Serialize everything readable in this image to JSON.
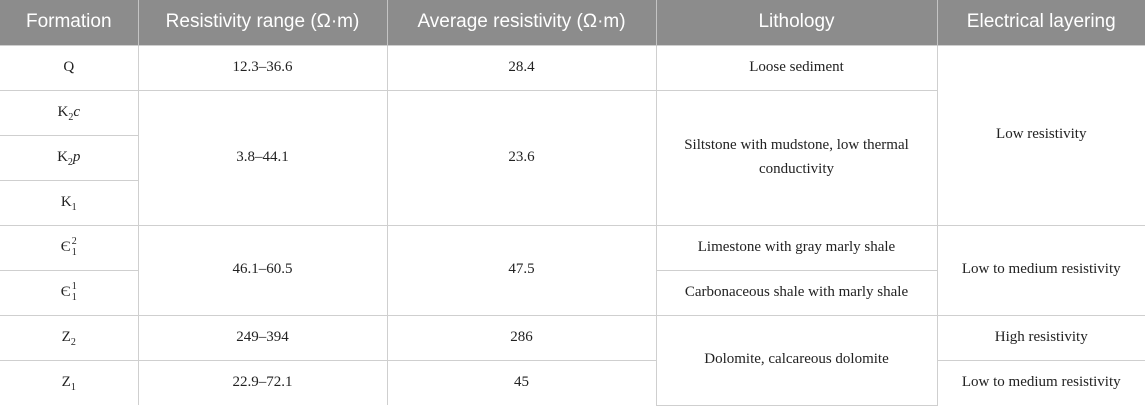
{
  "header": {
    "formation": "Formation",
    "resistivity_range": "Resistivity range (Ω·m)",
    "average_resistivity": "Average resistivity (Ω·m)",
    "lithology": "Lithology",
    "electrical_layering": "Electrical layering"
  },
  "rows": [
    {
      "formation_base": "Q",
      "range": "12.3–36.6",
      "average": "28.4",
      "lithology": "Loose sediment"
    },
    {
      "formation_base": "K",
      "formation_sub": "2",
      "formation_suffix": "c"
    },
    {
      "formation_base": "K",
      "formation_sub": "2",
      "formation_suffix": "p",
      "range": "3.8–44.1",
      "average": "23.6",
      "lithology": "Siltstone with mudstone, low thermal conductivity"
    },
    {
      "formation_base": "K",
      "formation_sub": "1"
    },
    {
      "formation_base": "Є",
      "formation_sub": "1",
      "formation_sup": "2",
      "lithology": "Limestone with gray marly shale"
    },
    {
      "formation_base": "Є",
      "formation_sub": "1",
      "formation_sup": "1",
      "lithology": "Carbonaceous shale with marly shale"
    },
    {
      "formation_base": "Z",
      "formation_sub": "2",
      "range": "249–394",
      "average": "286",
      "lithology": "Dolomite, calcareous dolomite"
    },
    {
      "formation_base": "Z",
      "formation_sub": "1",
      "range": "22.9–72.1",
      "average": "45"
    }
  ],
  "group_values": {
    "cambrian_range": "46.1–60.5",
    "cambrian_average": "47.5"
  },
  "layering": {
    "low": "Low resistivity",
    "low_medium_1": "Low to medium resistivity",
    "high": "High resistivity",
    "low_medium_2": "Low to medium resistivity"
  }
}
